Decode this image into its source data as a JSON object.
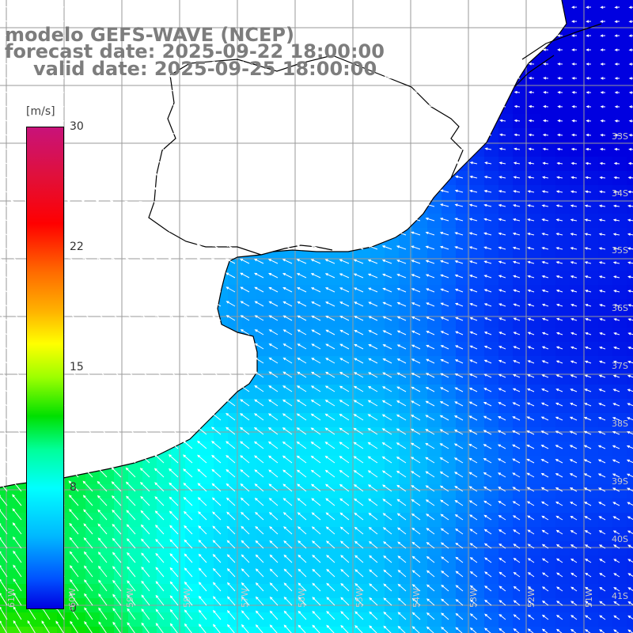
{
  "title": {
    "line1": "modelo GEFS-WAVE (NCEP)",
    "line2": "forecast date: 2025-09-22 18:00:00",
    "line3": "valid date: 2025-09-25 18:00:00"
  },
  "colorbar": {
    "unit": "[m/s]",
    "ticks": [
      "30",
      "22",
      "15",
      "8",
      "0"
    ],
    "colors": [
      "#c8127a",
      "#ff0000",
      "#ffb000",
      "#ffff00",
      "#00e000",
      "#00ffff",
      "#0050ff",
      "#0000e0"
    ]
  },
  "axes": {
    "lat_labels": [
      "33S",
      "34S",
      "35S",
      "36S",
      "37S",
      "38S",
      "39S",
      "40S",
      "41S"
    ],
    "lon_labels": [
      "61W",
      "60W",
      "59W",
      "58W",
      "57W",
      "56W",
      "55W",
      "54W",
      "53W",
      "52W",
      "51W"
    ]
  },
  "colors": {
    "land": "#ffffff",
    "grid": "#9a9a9a",
    "coastline": "#000000",
    "arrows": "#ffffff"
  }
}
